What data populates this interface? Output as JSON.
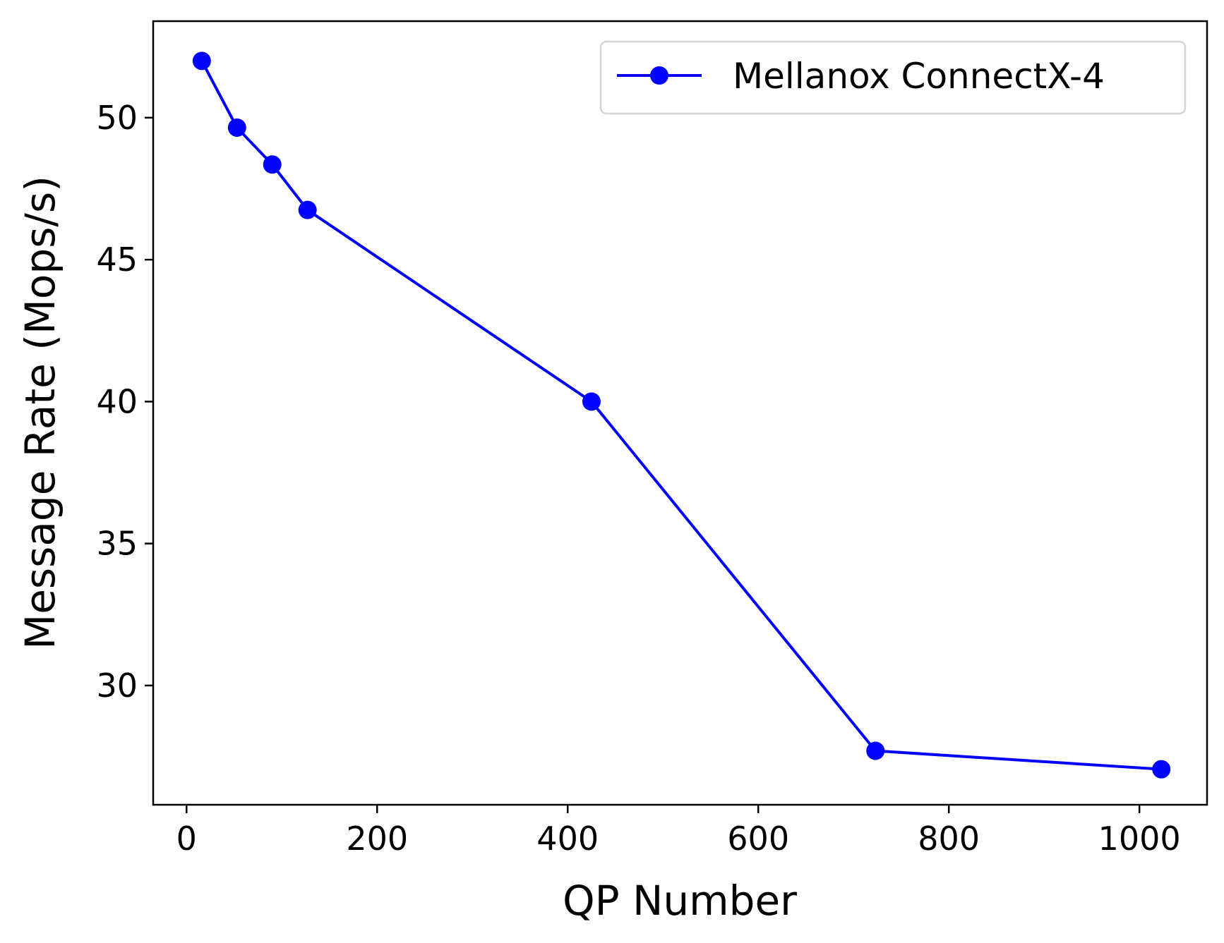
{
  "chart_data": {
    "type": "line",
    "title": "",
    "xlabel": "QP Number",
    "ylabel": "Message Rate (Mops/s)",
    "xlim": [
      -35,
      1071
    ],
    "ylim": [
      25.8,
      53.4
    ],
    "xticks": [
      0,
      200,
      400,
      600,
      800,
      1000
    ],
    "yticks": [
      30,
      35,
      40,
      45,
      50
    ],
    "grid": false,
    "legend_position": "top-right",
    "series": [
      {
        "name": "Mellanox ConnectX-4",
        "color": "#0000ff",
        "marker": "circle",
        "x": [
          16,
          53,
          90,
          127,
          425,
          723,
          1023
        ],
        "y": [
          52.0,
          49.65,
          48.35,
          46.75,
          40.0,
          27.7,
          27.05
        ]
      }
    ]
  }
}
